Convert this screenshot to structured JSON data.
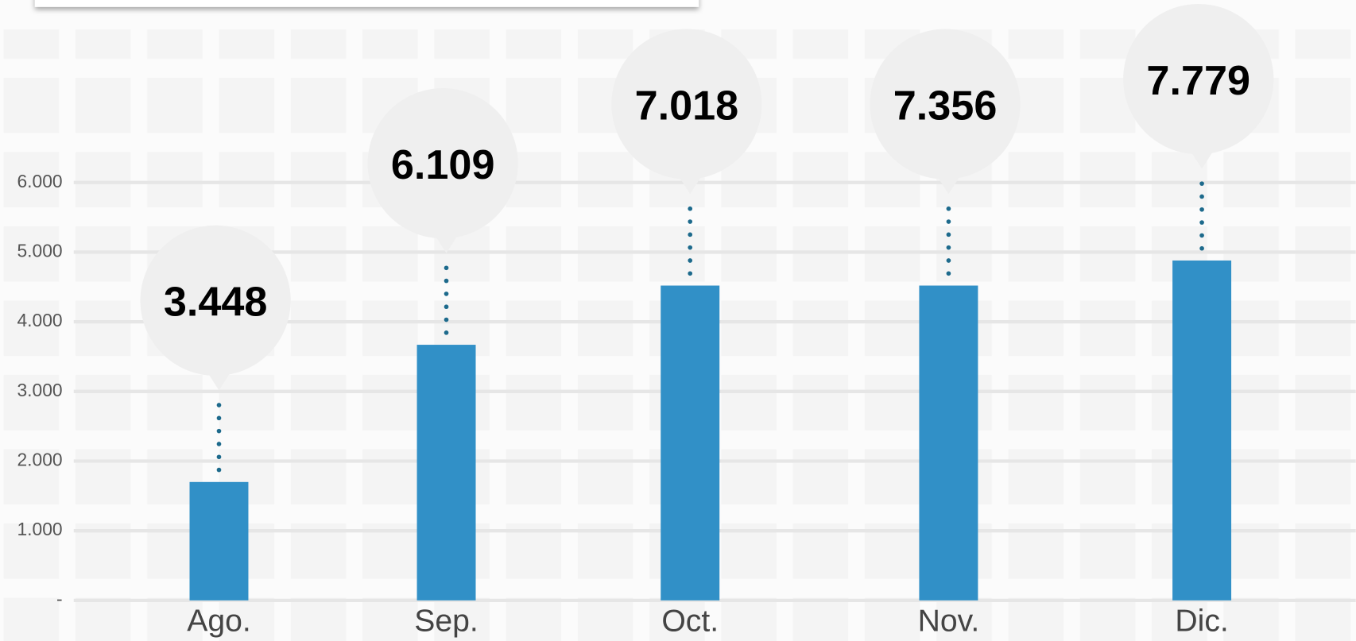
{
  "chart_data": {
    "type": "bar",
    "categories": [
      "Ago.",
      "Sep.",
      "Oct.",
      "Nov.",
      "Dic."
    ],
    "values": [
      1700,
      3670,
      4520,
      4520,
      4880
    ],
    "annotations": [
      "3.448",
      "6.109",
      "7.018",
      "7.356",
      "7.779"
    ],
    "color": "#3190c7",
    "ylim": [
      0,
      8620
    ],
    "yticks": [
      {
        "value": 0,
        "label": "-"
      },
      {
        "value": 1000,
        "label": "1.000"
      },
      {
        "value": 2000,
        "label": "2.000"
      },
      {
        "value": 3000,
        "label": "3.000"
      },
      {
        "value": 4000,
        "label": "4.000"
      },
      {
        "value": 5000,
        "label": "5.000"
      },
      {
        "value": 6000,
        "label": "6.000"
      }
    ],
    "grid": true
  }
}
